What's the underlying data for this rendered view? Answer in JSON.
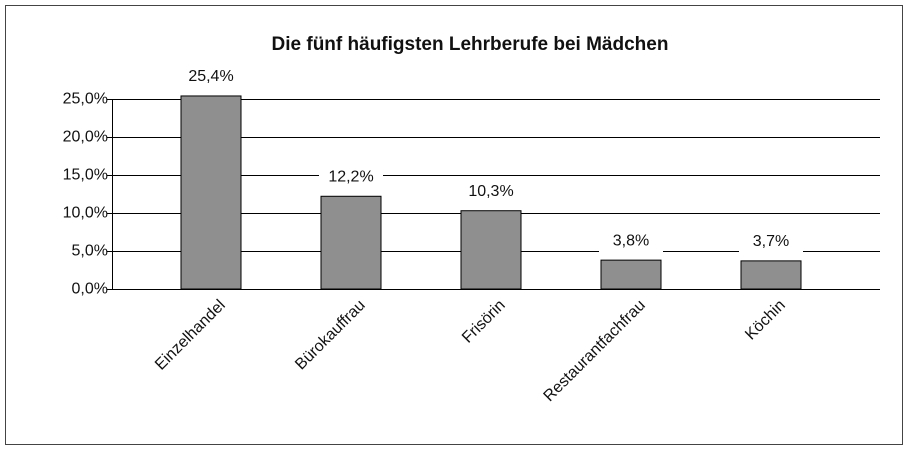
{
  "chart_data": {
    "type": "bar",
    "title": "Die fünf häufigsten Lehrberufe bei Mädchen",
    "categories": [
      "Einzelhandel",
      "Bürokauffrau",
      "Frisörin",
      "Restaurantfachfrau",
      "Köchin"
    ],
    "values": [
      25.4,
      12.2,
      10.3,
      3.8,
      3.7
    ],
    "value_labels": [
      "25,4%",
      "12,2%",
      "10,3%",
      "3,8%",
      "3,7%"
    ],
    "color": "#8f8f8f",
    "ylim": [
      0,
      25
    ],
    "yticks": [
      {
        "value": 0,
        "label": "0,0%"
      },
      {
        "value": 5,
        "label": "5,0%"
      },
      {
        "value": 10,
        "label": "10,0%"
      },
      {
        "value": 15,
        "label": "15,0%"
      },
      {
        "value": 20,
        "label": "20,0%"
      },
      {
        "value": 25,
        "label": "25,0%"
      }
    ],
    "grid": true
  }
}
